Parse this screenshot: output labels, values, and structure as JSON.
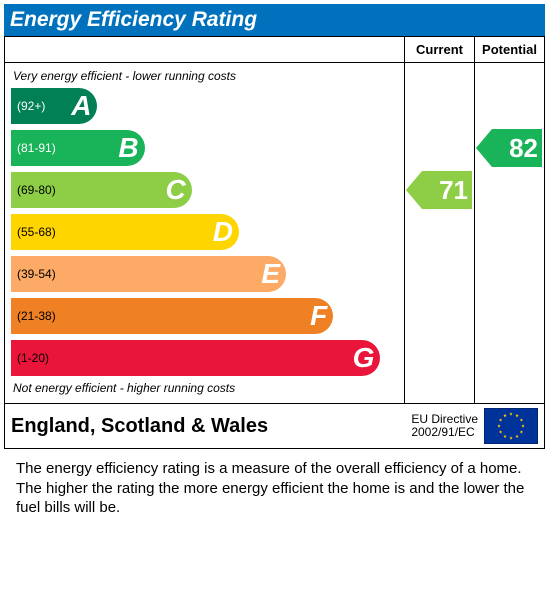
{
  "title": "Energy Efficiency Rating",
  "title_bg": "#0071bd",
  "title_color": "#ffffff",
  "columns": {
    "current": "Current",
    "potential": "Potential"
  },
  "notes": {
    "top": "Very energy efficient - lower running costs",
    "bottom": "Not energy efficient - higher running costs"
  },
  "bands": [
    {
      "letter": "A",
      "range": "(92+)",
      "color": "#008054",
      "range_color": "#ffffff",
      "width_pct": 22
    },
    {
      "letter": "B",
      "range": "(81-91)",
      "color": "#19b359",
      "range_color": "#ffffff",
      "width_pct": 34
    },
    {
      "letter": "C",
      "range": "(69-80)",
      "color": "#8dce46",
      "range_color": "#000000",
      "width_pct": 46
    },
    {
      "letter": "D",
      "range": "(55-68)",
      "color": "#ffd500",
      "range_color": "#000000",
      "width_pct": 58
    },
    {
      "letter": "E",
      "range": "(39-54)",
      "color": "#fcaa65",
      "range_color": "#000000",
      "width_pct": 70
    },
    {
      "letter": "F",
      "range": "(21-38)",
      "color": "#ef8023",
      "range_color": "#000000",
      "width_pct": 82
    },
    {
      "letter": "G",
      "range": "(1-20)",
      "color": "#e9153b",
      "range_color": "#000000",
      "width_pct": 94
    }
  ],
  "band_row_height": 42,
  "top_note_height": 22,
  "current": {
    "value": "71",
    "band_index": 2
  },
  "potential": {
    "value": "82",
    "band_index": 1
  },
  "footer": {
    "region": "England, Scotland & Wales",
    "directive_line1": "EU Directive",
    "directive_line2": "2002/91/EC"
  },
  "eu_flag": {
    "bg": "#003399",
    "star": "#ffcc00"
  },
  "description": "The energy efficiency rating is a measure of the overall efficiency of a home. The higher the rating the more energy efficient the home is and the lower the fuel bills will be."
}
